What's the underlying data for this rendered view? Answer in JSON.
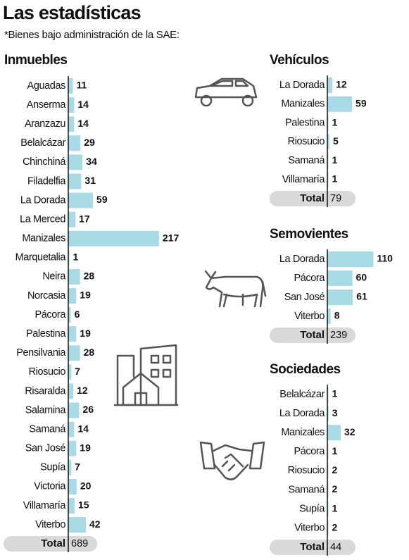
{
  "title": "Las estadísticas",
  "subtitle": "*Bienes bajo administración de la SAE:",
  "chart_data": [
    {
      "type": "bar",
      "orientation": "horizontal",
      "title": "Inmuebles",
      "color": "#a8dbe6",
      "categories": [
        "Aguadas",
        "Anserma",
        "Aranzazu",
        "Belalcázar",
        "Chinchiná",
        "Filadelfia",
        "La Dorada",
        "La Merced",
        "Manizales",
        "Marquetalia",
        "Neira",
        "Norcasia",
        "Pácora",
        "Palestina",
        "Pensilvania",
        "Riosucio",
        "Risaralda",
        "Salamina",
        "Samaná",
        "San José",
        "Supía",
        "Victoria",
        "Villamaría",
        "Viterbo"
      ],
      "values": [
        11,
        14,
        14,
        29,
        34,
        31,
        59,
        17,
        217,
        1,
        28,
        19,
        6,
        19,
        28,
        7,
        12,
        26,
        14,
        19,
        7,
        20,
        15,
        42
      ],
      "total_label": "Total",
      "total": 689
    },
    {
      "type": "bar",
      "orientation": "horizontal",
      "title": "Vehículos",
      "color": "#a8dbe6",
      "categories": [
        "La Dorada",
        "Manizales",
        "Palestina",
        "Riosucio",
        "Samaná",
        "Villamaría"
      ],
      "values": [
        12,
        59,
        1,
        5,
        1,
        1
      ],
      "total_label": "Total",
      "total": 79
    },
    {
      "type": "bar",
      "orientation": "horizontal",
      "title": "Semovientes",
      "color": "#a8dbe6",
      "categories": [
        "La Dorada",
        "Pácora",
        "San José",
        "Viterbo"
      ],
      "values": [
        110,
        60,
        61,
        8
      ],
      "total_label": "Total",
      "total": 239
    },
    {
      "type": "bar",
      "orientation": "horizontal",
      "title": "Sociedades",
      "color": "#a8dbe6",
      "categories": [
        "Belalcázar",
        "La Dorada",
        "Manizales",
        "Pácora",
        "Riosucio",
        "Samaná",
        "Supía",
        "Viterbo"
      ],
      "values": [
        1,
        3,
        32,
        1,
        2,
        2,
        1,
        2
      ],
      "total_label": "Total",
      "total": 44
    }
  ]
}
